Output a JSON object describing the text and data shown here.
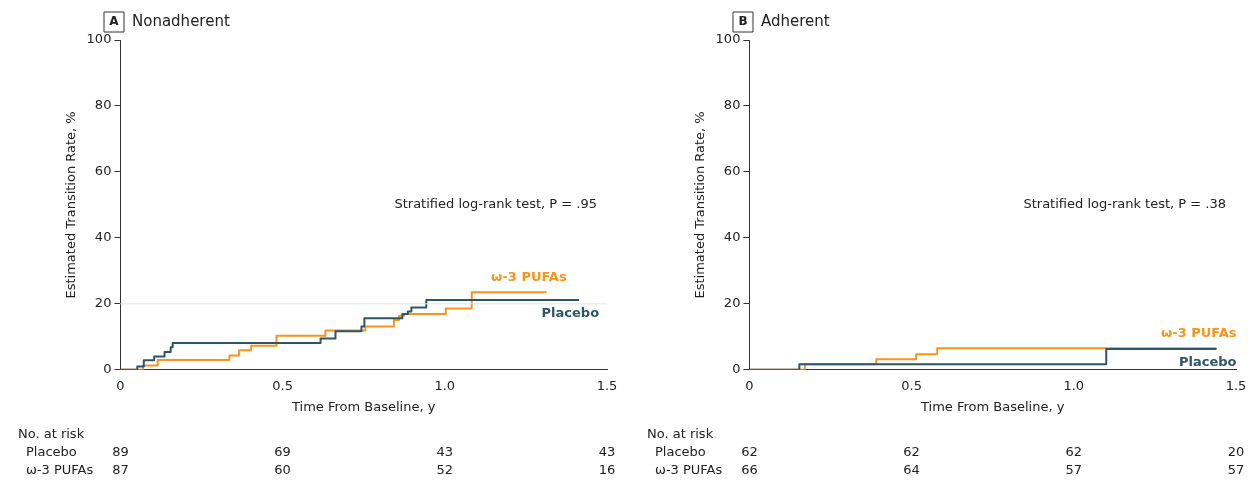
{
  "chart_data": [
    {
      "type": "step",
      "title": "Nonadherent",
      "xlabel": "Time From Baseline, y",
      "ylabel": "Estimated Transition Rate, %",
      "annotations": [
        "A",
        "Stratified log-rank test, P = .95",
        "No. at risk",
        "89",
        "69",
        "43",
        "43",
        "87",
        "60",
        "52",
        "16"
      ],
      "xlim": [
        0,
        1.5
      ],
      "xticks": [
        0,
        0.5,
        {
          "value": 1,
          "label": "1.0"
        },
        1.5
      ],
      "ylim": [
        0,
        100
      ],
      "yticks": [
        0,
        20,
        40,
        60,
        80,
        100
      ],
      "ref_lines": [
        {
          "axis": "y",
          "value": 20,
          "color": "#e3e3e3"
        }
      ],
      "legend": false,
      "grid": false,
      "marker": "none",
      "line_style": "solid",
      "series": [
        {
          "name": "Placebo",
          "color": "#2e5566",
          "x": [
            0,
            0.052,
            0.072,
            0.104,
            0.136,
            0.155,
            0.161,
            0.617,
            0.663,
            0.743,
            0.752,
            0.869,
            0.886,
            0.897,
            0.943,
            1.414
          ],
          "values": [
            0,
            1.0,
            2.9,
            4.0,
            5.4,
            6.8,
            8.1,
            9.5,
            11.7,
            13.1,
            15.6,
            16.9,
            17.7,
            18.9,
            21.2,
            21.2
          ]
        },
        {
          "name": "ω-3 PUFAs",
          "color": "#f7941d",
          "x": [
            0,
            0.07,
            0.115,
            0.336,
            0.366,
            0.403,
            0.481,
            0.632,
            0.755,
            0.843,
            0.859,
            0.874,
            1.003,
            1.083,
            1.314
          ],
          "values": [
            0,
            1.3,
            3.0,
            4.3,
            5.9,
            7.3,
            10.3,
            11.9,
            13.1,
            15.1,
            16.4,
            16.9,
            18.6,
            23.5,
            23.5
          ]
        }
      ]
    },
    {
      "type": "step",
      "title": "Adherent",
      "xlabel": "Time From Baseline, y",
      "ylabel": "Estimated Transition Rate, %",
      "annotations": [
        "B",
        "Stratified log-rank test, P = .38",
        "No. at risk",
        "62",
        "62",
        "62",
        "20",
        "66",
        "64",
        "57",
        "57"
      ],
      "xlim": [
        0,
        1.5
      ],
      "xticks": [
        0,
        0.5,
        {
          "value": 1,
          "label": "1.0"
        },
        1.5
      ],
      "ylim": [
        0,
        100
      ],
      "yticks": [
        0,
        20,
        40,
        60,
        80,
        100
      ],
      "legend": false,
      "grid": false,
      "marker": "none",
      "line_style": "solid",
      "series": [
        {
          "name": "Placebo",
          "color": "#2e5566",
          "x": [
            0,
            0.154,
            1.1,
            1.44
          ],
          "values": [
            0,
            1.7,
            6.3,
            6.3
          ]
        },
        {
          "name": "ω-3 PUFAs",
          "color": "#f7941d",
          "x": [
            0,
            0.171,
            0.391,
            0.514,
            0.579,
            1.44
          ],
          "values": [
            0,
            1.7,
            3.2,
            4.7,
            6.5,
            6.5
          ]
        }
      ]
    }
  ]
}
